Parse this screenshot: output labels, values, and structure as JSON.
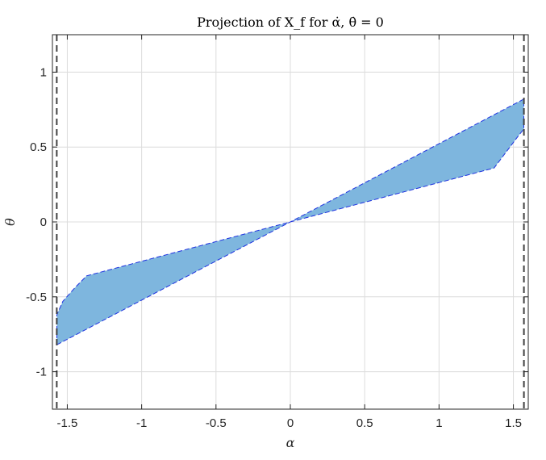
{
  "chart_data": {
    "type": "area",
    "title": "Projection of X_f for α̇, θ̇ = 0",
    "xlabel": "α",
    "ylabel": "θ",
    "xlim": [
      -1.6,
      1.6
    ],
    "ylim": [
      -1.25,
      1.25
    ],
    "xticks": [
      -1.5,
      -1,
      -0.5,
      0,
      0.5,
      1,
      1.5
    ],
    "xtick_labels": [
      "-1.5",
      "-1",
      "-0.5",
      "0",
      "0.5",
      "1",
      "1.5"
    ],
    "yticks": [
      -1,
      -0.5,
      0,
      0.5,
      1
    ],
    "ytick_labels": [
      "-1",
      "-0.5",
      "0",
      "0.5",
      "1"
    ],
    "grid": true,
    "region": {
      "fill_color": "#7eb6de",
      "edge_color": "#1f32e0",
      "polygon": [
        [
          -1.57,
          -0.82
        ],
        [
          1.57,
          0.82
        ],
        [
          1.57,
          0.62
        ],
        [
          1.53,
          0.57
        ],
        [
          1.37,
          0.36
        ],
        [
          -1.37,
          -0.36
        ],
        [
          -1.45,
          -0.44
        ],
        [
          -1.53,
          -0.53
        ],
        [
          -1.57,
          -0.62
        ]
      ]
    },
    "bounds": {
      "x_values": [
        -1.5708,
        1.5708
      ],
      "color": "#404040",
      "style": "dashed"
    }
  }
}
